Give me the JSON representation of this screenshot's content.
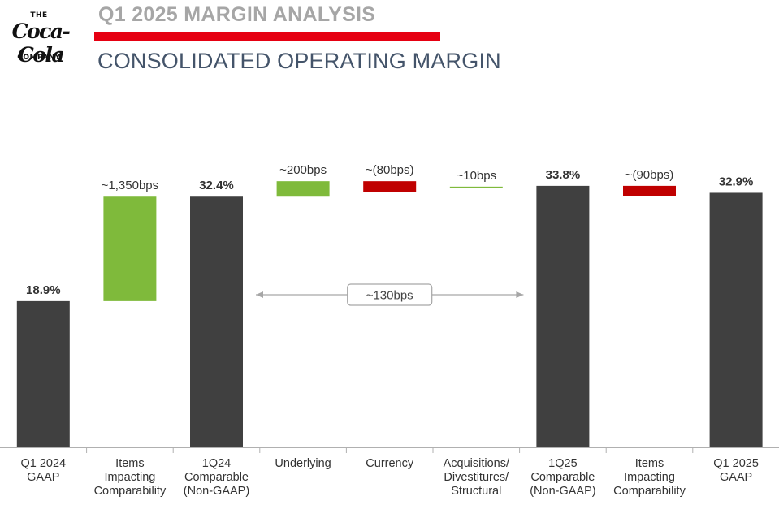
{
  "logo": {
    "line1": "THE",
    "script": "Coca-Cola",
    "line2": "COMPANY"
  },
  "header": {
    "title": "Q1 2025 MARGIN ANALYSIS",
    "subtitle": "CONSOLIDATED OPERATING MARGIN"
  },
  "colors": {
    "dark": "#404040",
    "green": "#7fba3b",
    "red": "#c00000",
    "accent": "#e60012"
  },
  "chart_data": {
    "type": "waterfall",
    "unit": "%",
    "ylim": [
      0,
      40
    ],
    "steps": [
      {
        "category": [
          "Q1 2024",
          "GAAP"
        ],
        "kind": "total",
        "start": 0,
        "end": 18.9,
        "label": "18.9%"
      },
      {
        "category": [
          "Items",
          "Impacting",
          "Comparability"
        ],
        "kind": "increase",
        "start": 18.9,
        "end": 32.4,
        "label": "~1,350bps"
      },
      {
        "category": [
          "1Q24",
          "Comparable",
          "(Non-GAAP)"
        ],
        "kind": "total",
        "start": 0,
        "end": 32.4,
        "label": "32.4%"
      },
      {
        "category": [
          "Underlying"
        ],
        "kind": "increase",
        "start": 32.4,
        "end": 34.4,
        "label": "~200bps"
      },
      {
        "category": [
          "Currency"
        ],
        "kind": "decrease",
        "start": 34.4,
        "end": 33.6,
        "label": "~(80bps)"
      },
      {
        "category": [
          "Acquisitions/",
          "Divestitures/",
          "Structural"
        ],
        "kind": "increase",
        "start": 33.6,
        "end": 33.7,
        "label": "~10bps"
      },
      {
        "category": [
          "1Q25",
          "Comparable",
          "(Non-GAAP)"
        ],
        "kind": "total",
        "start": 0,
        "end": 33.8,
        "label": "33.8%"
      },
      {
        "category": [
          "Items",
          "Impacting",
          "Comparability"
        ],
        "kind": "decrease",
        "start": 33.8,
        "end": 32.9,
        "label": "~(90bps)"
      },
      {
        "category": [
          "Q1 2025",
          "GAAP"
        ],
        "kind": "total",
        "start": 0,
        "end": 32.9,
        "label": "32.9%"
      }
    ],
    "annotation": {
      "label": "~130bps",
      "from_step": 2,
      "to_step": 6
    }
  }
}
